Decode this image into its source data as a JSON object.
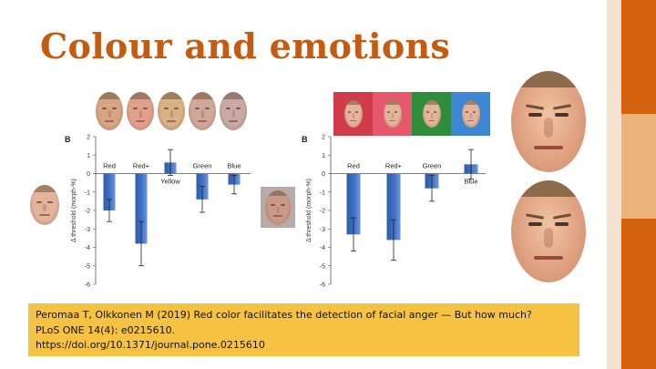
{
  "slide": {
    "title": "Colour and emotions",
    "citation": {
      "line1": "Peromaa T, Olkkonen M (2019) Red color facilitates the detection of facial anger — But how much?",
      "line2": "PLoS ONE 14(4): e0215610.",
      "line3": "https://doi.org/10.1371/journal.pone.0215610"
    },
    "accent_colors": {
      "light": "#f6e2d2",
      "dark": "#d4620d",
      "mid": "#ebb27d"
    }
  },
  "figures": {
    "left_strip_colors": [
      "#d8a582",
      "#e2a08a",
      "#d8b184",
      "#cfa89a",
      "#c9a9a5"
    ],
    "right_strip_backgrounds": [
      "#d03c4a",
      "#e45a6c",
      "#2f8c3a",
      "#3c86d4"
    ],
    "face_tone": "#e3b39a"
  },
  "chart_data": [
    {
      "type": "bar",
      "panel_label": "B",
      "categories": [
        "Red",
        "Red+",
        "Yellow",
        "Green",
        "Blue"
      ],
      "values": [
        -2.0,
        -3.8,
        0.6,
        -1.4,
        -0.6
      ],
      "errors": [
        0.6,
        1.2,
        0.7,
        0.7,
        0.5
      ],
      "ylabel": "Δ threshold (morph-%)",
      "ylim": [
        -6,
        2
      ],
      "yticks": [
        "2",
        "1",
        "0",
        "-1",
        "-2",
        "-3",
        "-4",
        "-5",
        "-6"
      ],
      "bar_color": "#3d6fc4"
    },
    {
      "type": "bar",
      "panel_label": "B",
      "categories": [
        "Red",
        "Red+",
        "Green",
        "Blue"
      ],
      "values": [
        -3.3,
        -3.6,
        -0.8,
        0.5
      ],
      "errors": [
        0.9,
        1.1,
        0.7,
        0.8
      ],
      "ylabel": "Δ threshold (morph-%)",
      "ylim": [
        -6,
        2
      ],
      "yticks": [
        "2",
        "1",
        "0",
        "-1",
        "-2",
        "-3",
        "-4",
        "-5",
        "-6"
      ],
      "bar_color": "#3d6fc4"
    }
  ]
}
